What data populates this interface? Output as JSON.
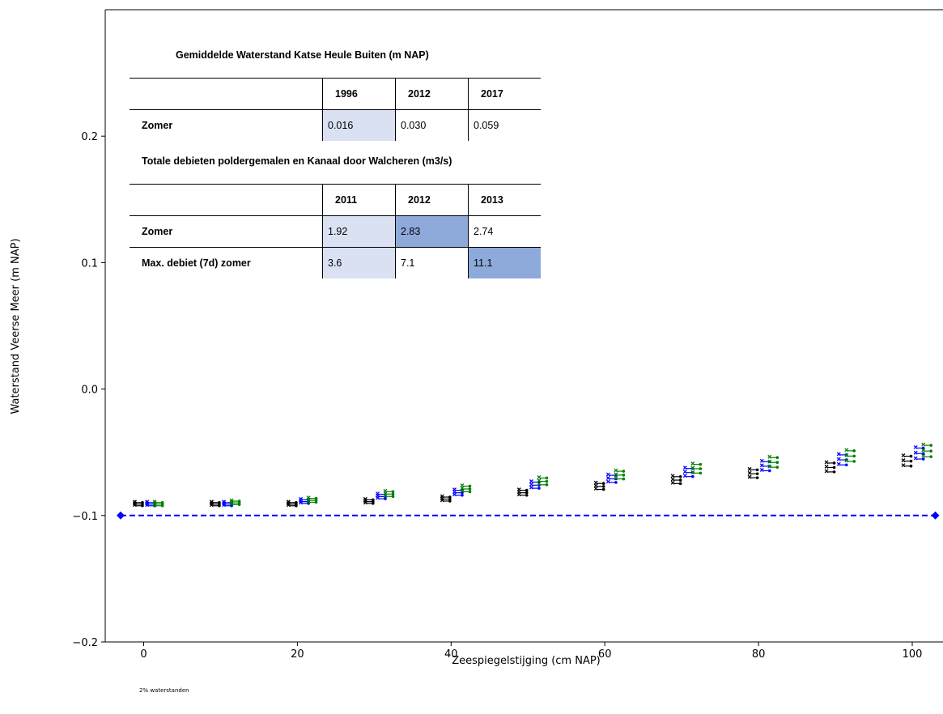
{
  "chart_data": {
    "type": "scatter",
    "title": "",
    "xlabel": "Zeespiegelstijging (cm NAP)",
    "ylabel": "Waterstand Veerse Meer (m NAP)",
    "xlim": [
      -5,
      104
    ],
    "ylim": [
      -0.2,
      0.3
    ],
    "xticks": [
      0,
      20,
      40,
      60,
      80,
      100
    ],
    "xtick_labels": [
      "0",
      "20",
      "40",
      "60",
      "80",
      "100"
    ],
    "yticks": [
      -0.2,
      -0.1,
      0.0,
      0.1,
      0.2
    ],
    "ytick_labels": [
      "−0.2",
      "−0.1",
      "0.0",
      "0.1",
      "0.2"
    ],
    "grid": false,
    "reference_line": {
      "y": -0.1,
      "x": [
        -3,
        103
      ],
      "color": "#0000ff",
      "style": "dashed"
    },
    "marker_series": [
      {
        "color": "#000000",
        "x_offset": -1,
        "points": [
          [
            0,
            -0.091
          ],
          [
            10,
            -0.091
          ],
          [
            20,
            -0.091
          ],
          [
            30,
            -0.089
          ],
          [
            40,
            -0.087
          ],
          [
            50,
            -0.082
          ],
          [
            60,
            -0.077
          ],
          [
            70,
            -0.072
          ],
          [
            80,
            -0.067
          ],
          [
            90,
            -0.062
          ],
          [
            100,
            -0.057
          ]
        ]
      },
      {
        "color": "#0000ff",
        "x_offset": 0.6,
        "points": [
          [
            0,
            -0.091
          ],
          [
            10,
            -0.091
          ],
          [
            20,
            -0.089
          ],
          [
            30,
            -0.085
          ],
          [
            40,
            -0.082
          ],
          [
            50,
            -0.076
          ],
          [
            60,
            -0.071
          ],
          [
            70,
            -0.066
          ],
          [
            80,
            -0.061
          ],
          [
            90,
            -0.056
          ],
          [
            100,
            -0.051
          ]
        ]
      },
      {
        "color": "#008000",
        "x_offset": 1.6,
        "points": [
          [
            0,
            -0.091
          ],
          [
            10,
            -0.09
          ],
          [
            20,
            -0.088
          ],
          [
            30,
            -0.083
          ],
          [
            40,
            -0.079
          ],
          [
            50,
            -0.073
          ],
          [
            60,
            -0.068
          ],
          [
            70,
            -0.063
          ],
          [
            80,
            -0.058
          ],
          [
            90,
            -0.053
          ],
          [
            100,
            -0.049
          ]
        ]
      }
    ],
    "colors": {
      "black": "#000000",
      "blue": "#0000ff",
      "green": "#008000",
      "light_fill": "#d9e1f2",
      "dark_fill": "#8eaadb"
    }
  },
  "tables": {
    "t1": {
      "title": "Gemiddelde Waterstand Katse Heule Buiten (m NAP)",
      "headers": [
        "",
        "1996",
        "2012",
        "2017"
      ],
      "rows": [
        {
          "label": "Zomer",
          "values": [
            "0.016",
            "0.030",
            "0.059"
          ],
          "fills": [
            "light",
            "",
            ""
          ]
        }
      ]
    },
    "t2": {
      "title": "Totale debieten poldergemalen en Kanaal door Walcheren (m3/s)",
      "headers": [
        "",
        "2011",
        "2012",
        "2013"
      ],
      "rows": [
        {
          "label": "Zomer",
          "values": [
            "1.92",
            "2.83",
            "2.74"
          ],
          "fills": [
            "light",
            "dark",
            ""
          ]
        },
        {
          "label": "Max. debiet (7d) zomer",
          "values": [
            "3.6",
            "7.1",
            "11.1"
          ],
          "fills": [
            "light",
            "",
            "dark"
          ]
        }
      ]
    }
  },
  "footnote": "2% waterstanden"
}
